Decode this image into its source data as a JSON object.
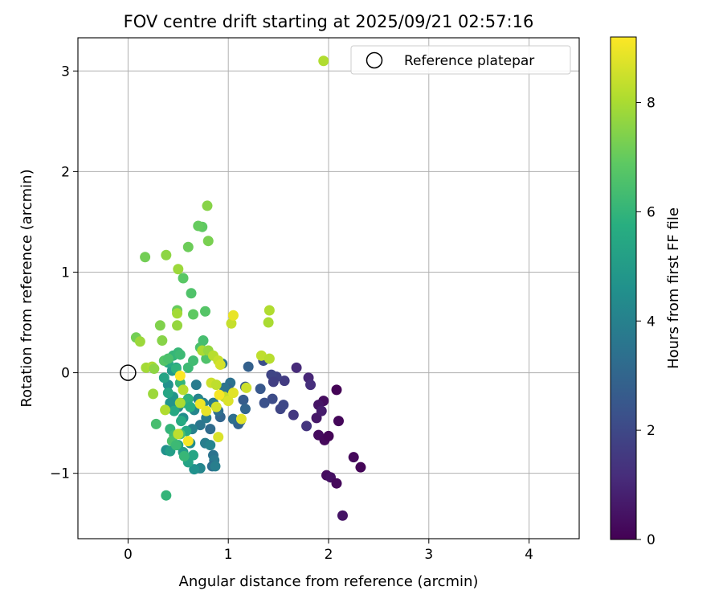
{
  "chart_data": {
    "type": "scatter",
    "title": "FOV centre drift starting at 2025/09/21 02:57:16",
    "xlabel": "Angular distance from reference (arcmin)",
    "ylabel": "Rotation from reference (arcmin)",
    "xlim": [
      -0.5,
      4.5
    ],
    "ylim": [
      -1.65,
      3.33
    ],
    "xticks": [
      0,
      1,
      2,
      3,
      4
    ],
    "xtick_labels": [
      "0",
      "1",
      "2",
      "3",
      "4"
    ],
    "yticks": [
      -1,
      0,
      1,
      2,
      3
    ],
    "ytick_labels": [
      "−1",
      "0",
      "1",
      "2",
      "3"
    ],
    "grid": true,
    "legend": {
      "location": "top-right",
      "label": "Reference platepar"
    },
    "reference_point": {
      "x": 0,
      "y": 0
    },
    "colorbar": {
      "label": "Hours from first FF file",
      "colormap": "viridis",
      "range": [
        0,
        9.2
      ],
      "ticks": [
        0,
        2,
        4,
        6,
        8
      ],
      "tick_labels": [
        "0",
        "2",
        "4",
        "6",
        "8"
      ]
    },
    "points": [
      {
        "x": 2.08,
        "y": -0.17,
        "c": 0.05
      },
      {
        "x": 2.1,
        "y": -0.48,
        "c": 0.15
      },
      {
        "x": 1.95,
        "y": -0.28,
        "c": 0.3
      },
      {
        "x": 1.9,
        "y": -0.32,
        "c": 0.5
      },
      {
        "x": 1.88,
        "y": -0.45,
        "c": 0.6
      },
      {
        "x": 1.9,
        "y": -0.62,
        "c": 0.3
      },
      {
        "x": 1.96,
        "y": -0.67,
        "c": 0.2
      },
      {
        "x": 2.0,
        "y": -0.63,
        "c": 0.1
      },
      {
        "x": 1.93,
        "y": -0.38,
        "c": 0.7
      },
      {
        "x": 2.25,
        "y": -0.84,
        "c": 0.2
      },
      {
        "x": 2.32,
        "y": -0.94,
        "c": 0.1
      },
      {
        "x": 1.98,
        "y": -1.02,
        "c": 0.3
      },
      {
        "x": 2.02,
        "y": -1.04,
        "c": 0.4
      },
      {
        "x": 2.08,
        "y": -1.1,
        "c": 0.2
      },
      {
        "x": 2.14,
        "y": -1.42,
        "c": 0.5
      },
      {
        "x": 1.8,
        "y": -0.05,
        "c": 1.0
      },
      {
        "x": 1.82,
        "y": -0.12,
        "c": 1.2
      },
      {
        "x": 1.68,
        "y": 0.05,
        "c": 1.1
      },
      {
        "x": 1.78,
        "y": -0.53,
        "c": 1.4
      },
      {
        "x": 1.65,
        "y": -0.42,
        "c": 1.5
      },
      {
        "x": 1.56,
        "y": -0.08,
        "c": 1.6
      },
      {
        "x": 1.48,
        "y": -0.04,
        "c": 1.8
      },
      {
        "x": 1.43,
        "y": -0.02,
        "c": 1.9
      },
      {
        "x": 1.45,
        "y": -0.09,
        "c": 1.7
      },
      {
        "x": 1.52,
        "y": -0.36,
        "c": 1.9
      },
      {
        "x": 1.55,
        "y": -0.32,
        "c": 2.0
      },
      {
        "x": 1.44,
        "y": -0.26,
        "c": 2.1
      },
      {
        "x": 1.35,
        "y": 0.12,
        "c": 2.2
      },
      {
        "x": 1.36,
        "y": -0.3,
        "c": 2.3
      },
      {
        "x": 1.32,
        "y": -0.16,
        "c": 2.5
      },
      {
        "x": 1.2,
        "y": 0.06,
        "c": 2.8
      },
      {
        "x": 1.17,
        "y": -0.14,
        "c": 2.6
      },
      {
        "x": 1.15,
        "y": -0.27,
        "c": 2.7
      },
      {
        "x": 1.17,
        "y": -0.36,
        "c": 3.0
      },
      {
        "x": 1.12,
        "y": -0.48,
        "c": 3.2
      },
      {
        "x": 1.1,
        "y": -0.51,
        "c": 2.9
      },
      {
        "x": 1.05,
        "y": -0.46,
        "c": 3.3
      },
      {
        "x": 1.02,
        "y": -0.1,
        "c": 3.4
      },
      {
        "x": 1.0,
        "y": -0.16,
        "c": 3.1
      },
      {
        "x": 0.96,
        "y": -0.15,
        "c": 3.5
      },
      {
        "x": 0.94,
        "y": 0.09,
        "c": 3.6
      },
      {
        "x": 0.92,
        "y": -0.44,
        "c": 3.0
      },
      {
        "x": 0.9,
        "y": -0.38,
        "c": 3.3
      },
      {
        "x": 0.85,
        "y": -0.3,
        "c": 3.7
      },
      {
        "x": 0.82,
        "y": -0.56,
        "c": 3.2
      },
      {
        "x": 0.78,
        "y": -0.45,
        "c": 3.8
      },
      {
        "x": 0.77,
        "y": -0.7,
        "c": 3.9
      },
      {
        "x": 0.75,
        "y": -0.3,
        "c": 4.0
      },
      {
        "x": 0.72,
        "y": -0.52,
        "c": 3.6
      },
      {
        "x": 0.7,
        "y": -0.26,
        "c": 4.1
      },
      {
        "x": 0.68,
        "y": -0.12,
        "c": 3.8
      },
      {
        "x": 0.66,
        "y": -0.37,
        "c": 4.2
      },
      {
        "x": 0.64,
        "y": -0.56,
        "c": 4.0
      },
      {
        "x": 0.85,
        "y": -0.82,
        "c": 3.5
      },
      {
        "x": 0.86,
        "y": -0.87,
        "c": 3.7
      },
      {
        "x": 0.84,
        "y": -0.93,
        "c": 3.3
      },
      {
        "x": 0.87,
        "y": -0.93,
        "c": 3.9
      },
      {
        "x": 0.82,
        "y": -0.72,
        "c": 4.1
      },
      {
        "x": 0.72,
        "y": -0.95,
        "c": 4.2
      },
      {
        "x": 0.66,
        "y": -0.96,
        "c": 4.6
      },
      {
        "x": 0.62,
        "y": -0.7,
        "c": 4.4
      },
      {
        "x": 0.55,
        "y": -0.45,
        "c": 4.5
      },
      {
        "x": 0.5,
        "y": -0.34,
        "c": 4.3
      },
      {
        "x": 0.45,
        "y": -0.24,
        "c": 4.8
      },
      {
        "x": 0.42,
        "y": -0.3,
        "c": 4.7
      },
      {
        "x": 0.4,
        "y": -0.12,
        "c": 4.6
      },
      {
        "x": 0.44,
        "y": 0.02,
        "c": 4.9
      },
      {
        "x": 0.48,
        "y": 0.05,
        "c": 5.0
      },
      {
        "x": 0.38,
        "y": -0.77,
        "c": 4.6
      },
      {
        "x": 0.42,
        "y": -0.78,
        "c": 5.1
      },
      {
        "x": 0.5,
        "y": -0.72,
        "c": 5.2
      },
      {
        "x": 0.55,
        "y": -0.79,
        "c": 5.0
      },
      {
        "x": 0.6,
        "y": -0.89,
        "c": 5.3
      },
      {
        "x": 0.65,
        "y": -0.82,
        "c": 5.4
      },
      {
        "x": 0.58,
        "y": -0.58,
        "c": 5.5
      },
      {
        "x": 0.53,
        "y": -0.48,
        "c": 5.6
      },
      {
        "x": 0.56,
        "y": -0.3,
        "c": 5.8
      },
      {
        "x": 0.6,
        "y": -0.26,
        "c": 5.9
      },
      {
        "x": 0.62,
        "y": -0.34,
        "c": 5.7
      },
      {
        "x": 0.46,
        "y": -0.38,
        "c": 5.5
      },
      {
        "x": 0.4,
        "y": -0.2,
        "c": 5.4
      },
      {
        "x": 0.36,
        "y": -0.05,
        "c": 5.3
      },
      {
        "x": 0.4,
        "y": 0.1,
        "c": 5.6
      },
      {
        "x": 0.45,
        "y": 0.17,
        "c": 6.0
      },
      {
        "x": 0.5,
        "y": 0.2,
        "c": 6.1
      },
      {
        "x": 0.52,
        "y": 0.18,
        "c": 6.2
      },
      {
        "x": 0.48,
        "y": 0.04,
        "c": 5.9
      },
      {
        "x": 0.52,
        "y": -0.1,
        "c": 6.0
      },
      {
        "x": 0.6,
        "y": 0.05,
        "c": 6.2
      },
      {
        "x": 0.65,
        "y": 0.12,
        "c": 6.3
      },
      {
        "x": 0.72,
        "y": 0.25,
        "c": 6.5
      },
      {
        "x": 0.75,
        "y": 0.32,
        "c": 6.4
      },
      {
        "x": 0.78,
        "y": 0.14,
        "c": 6.6
      },
      {
        "x": 0.42,
        "y": -0.56,
        "c": 6.0
      },
      {
        "x": 0.46,
        "y": -0.62,
        "c": 6.3
      },
      {
        "x": 0.44,
        "y": -0.68,
        "c": 6.5
      },
      {
        "x": 0.48,
        "y": -0.72,
        "c": 6.2
      },
      {
        "x": 0.56,
        "y": -0.83,
        "c": 6.1
      },
      {
        "x": 0.52,
        "y": -0.61,
        "c": 6.4
      },
      {
        "x": 0.28,
        "y": -0.51,
        "c": 6.4
      },
      {
        "x": 0.38,
        "y": -1.22,
        "c": 6.0
      },
      {
        "x": 0.36,
        "y": 0.12,
        "c": 6.7
      },
      {
        "x": 0.4,
        "y": 0.14,
        "c": 6.5
      },
      {
        "x": 0.55,
        "y": 0.94,
        "c": 6.8
      },
      {
        "x": 0.63,
        "y": 0.79,
        "c": 6.6
      },
      {
        "x": 0.65,
        "y": 0.58,
        "c": 6.9
      },
      {
        "x": 0.77,
        "y": 0.61,
        "c": 6.7
      },
      {
        "x": 0.74,
        "y": 1.45,
        "c": 6.9
      },
      {
        "x": 0.7,
        "y": 1.46,
        "c": 7.0
      },
      {
        "x": 0.6,
        "y": 1.25,
        "c": 7.1
      },
      {
        "x": 0.8,
        "y": 1.31,
        "c": 7.3
      },
      {
        "x": 0.79,
        "y": 1.66,
        "c": 7.5
      },
      {
        "x": 0.17,
        "y": 1.15,
        "c": 7.2
      },
      {
        "x": 0.38,
        "y": 1.17,
        "c": 7.6
      },
      {
        "x": 0.5,
        "y": 1.03,
        "c": 7.8
      },
      {
        "x": 0.49,
        "y": 0.62,
        "c": 7.0
      },
      {
        "x": 0.49,
        "y": 0.59,
        "c": 7.9
      },
      {
        "x": 0.49,
        "y": 0.47,
        "c": 7.7
      },
      {
        "x": 0.32,
        "y": 0.47,
        "c": 7.4
      },
      {
        "x": 0.08,
        "y": 0.35,
        "c": 7.2
      },
      {
        "x": 0.12,
        "y": 0.31,
        "c": 7.8
      },
      {
        "x": 0.34,
        "y": 0.32,
        "c": 7.5
      },
      {
        "x": 0.18,
        "y": 0.05,
        "c": 7.9
      },
      {
        "x": 0.24,
        "y": 0.06,
        "c": 8.0
      },
      {
        "x": 0.26,
        "y": 0.04,
        "c": 7.6
      },
      {
        "x": 0.25,
        "y": -0.21,
        "c": 7.8
      },
      {
        "x": 0.37,
        "y": -0.37,
        "c": 8.1
      },
      {
        "x": 0.55,
        "y": -0.17,
        "c": 8.2
      },
      {
        "x": 0.5,
        "y": -0.61,
        "c": 8.3
      },
      {
        "x": 0.74,
        "y": 0.22,
        "c": 8.0
      },
      {
        "x": 0.8,
        "y": 0.22,
        "c": 7.7
      },
      {
        "x": 0.85,
        "y": 0.17,
        "c": 8.2
      },
      {
        "x": 0.9,
        "y": 0.12,
        "c": 8.4
      },
      {
        "x": 0.92,
        "y": 0.08,
        "c": 8.6
      },
      {
        "x": 0.83,
        "y": -0.1,
        "c": 8.5
      },
      {
        "x": 0.88,
        "y": -0.12,
        "c": 8.3
      },
      {
        "x": 0.96,
        "y": -0.24,
        "c": 8.4
      },
      {
        "x": 1.0,
        "y": -0.28,
        "c": 8.7
      },
      {
        "x": 1.05,
        "y": -0.2,
        "c": 8.8
      },
      {
        "x": 1.18,
        "y": -0.15,
        "c": 8.5
      },
      {
        "x": 1.33,
        "y": 0.17,
        "c": 8.3
      },
      {
        "x": 1.41,
        "y": 0.14,
        "c": 8.2
      },
      {
        "x": 1.4,
        "y": 0.5,
        "c": 8.0
      },
      {
        "x": 1.41,
        "y": 0.62,
        "c": 8.1
      },
      {
        "x": 1.03,
        "y": 0.49,
        "c": 8.4
      },
      {
        "x": 1.05,
        "y": 0.57,
        "c": 8.9
      },
      {
        "x": 1.95,
        "y": 3.1,
        "c": 8.1
      },
      {
        "x": 0.88,
        "y": -0.34,
        "c": 8.6
      },
      {
        "x": 0.78,
        "y": -0.38,
        "c": 8.9
      },
      {
        "x": 0.72,
        "y": -0.31,
        "c": 9.0
      },
      {
        "x": 0.6,
        "y": -0.68,
        "c": 9.1
      },
      {
        "x": 0.9,
        "y": -0.64,
        "c": 8.7
      },
      {
        "x": 1.13,
        "y": -0.46,
        "c": 8.8
      },
      {
        "x": 0.91,
        "y": -0.22,
        "c": 9.1
      },
      {
        "x": 0.52,
        "y": -0.03,
        "c": 9.2
      },
      {
        "x": 0.52,
        "y": -0.3,
        "c": 8.0
      }
    ]
  }
}
